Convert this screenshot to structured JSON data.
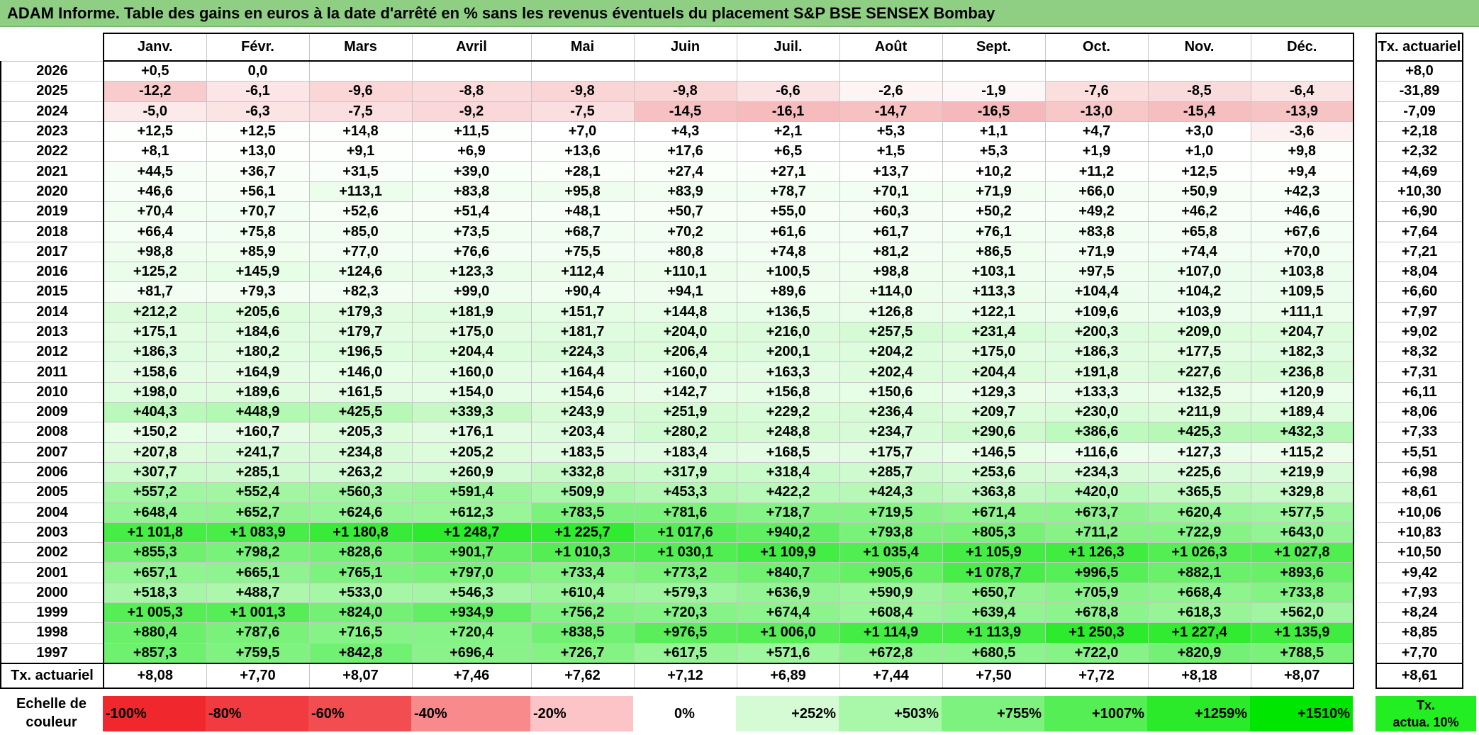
{
  "title": "ADAM Informe. Table des gains en euros à la date d'arrêté en % sans les revenus éventuels du placement S&P BSE SENSEX Bombay",
  "months": [
    "Janv.",
    "Févr.",
    "Mars",
    "Avril",
    "Mai",
    "Juin",
    "Juil.",
    "Août",
    "Sept.",
    "Oct.",
    "Nov.",
    "Déc."
  ],
  "actuarial_header": "Tx. actuariel",
  "rows": [
    {
      "year": "2026",
      "values": [
        "+0,5",
        "0,0",
        "",
        "",
        "",
        "",
        "",
        "",
        "",
        "",
        "",
        ""
      ],
      "rate": "+8,0"
    },
    {
      "year": "2025",
      "values": [
        "-12,2",
        "-6,1",
        "-9,6",
        "-8,8",
        "-9,8",
        "-9,8",
        "-6,6",
        "-2,6",
        "-1,9",
        "-7,6",
        "-8,5",
        "-6,4"
      ],
      "rate": "-31,89"
    },
    {
      "year": "2024",
      "values": [
        "-5,0",
        "-6,3",
        "-7,5",
        "-9,2",
        "-7,5",
        "-14,5",
        "-16,1",
        "-14,7",
        "-16,5",
        "-13,0",
        "-15,4",
        "-13,9"
      ],
      "rate": "-7,09"
    },
    {
      "year": "2023",
      "values": [
        "+12,5",
        "+12,5",
        "+14,8",
        "+11,5",
        "+7,0",
        "+4,3",
        "+2,1",
        "+5,3",
        "+1,1",
        "+4,7",
        "+3,0",
        "-3,6"
      ],
      "rate": "+2,18"
    },
    {
      "year": "2022",
      "values": [
        "+8,1",
        "+13,0",
        "+9,1",
        "+6,9",
        "+13,6",
        "+17,6",
        "+6,5",
        "+1,5",
        "+5,3",
        "+1,9",
        "+1,0",
        "+9,8"
      ],
      "rate": "+2,32"
    },
    {
      "year": "2021",
      "values": [
        "+44,5",
        "+36,7",
        "+31,5",
        "+39,0",
        "+28,1",
        "+27,4",
        "+27,1",
        "+13,7",
        "+10,2",
        "+11,2",
        "+12,5",
        "+9,4"
      ],
      "rate": "+4,69"
    },
    {
      "year": "2020",
      "values": [
        "+46,6",
        "+56,1",
        "+113,1",
        "+83,8",
        "+95,8",
        "+83,9",
        "+78,7",
        "+70,1",
        "+71,9",
        "+66,0",
        "+50,9",
        "+42,3"
      ],
      "rate": "+10,30"
    },
    {
      "year": "2019",
      "values": [
        "+70,4",
        "+70,7",
        "+52,6",
        "+51,4",
        "+48,1",
        "+50,7",
        "+55,0",
        "+60,3",
        "+50,2",
        "+49,2",
        "+46,2",
        "+46,6"
      ],
      "rate": "+6,90"
    },
    {
      "year": "2018",
      "values": [
        "+66,4",
        "+75,8",
        "+85,0",
        "+73,5",
        "+68,7",
        "+70,2",
        "+61,6",
        "+61,7",
        "+76,1",
        "+83,8",
        "+65,8",
        "+67,6"
      ],
      "rate": "+7,64"
    },
    {
      "year": "2017",
      "values": [
        "+98,8",
        "+85,9",
        "+77,0",
        "+76,6",
        "+75,5",
        "+80,8",
        "+74,8",
        "+81,2",
        "+86,5",
        "+71,9",
        "+74,4",
        "+70,0"
      ],
      "rate": "+7,21"
    },
    {
      "year": "2016",
      "values": [
        "+125,2",
        "+145,9",
        "+124,6",
        "+123,3",
        "+112,4",
        "+110,1",
        "+100,5",
        "+98,8",
        "+103,1",
        "+97,5",
        "+107,0",
        "+103,8"
      ],
      "rate": "+8,04"
    },
    {
      "year": "2015",
      "values": [
        "+81,7",
        "+79,3",
        "+82,3",
        "+99,0",
        "+90,4",
        "+94,1",
        "+89,6",
        "+114,0",
        "+113,3",
        "+104,4",
        "+104,2",
        "+109,5"
      ],
      "rate": "+6,60"
    },
    {
      "year": "2014",
      "values": [
        "+212,2",
        "+205,6",
        "+179,3",
        "+181,9",
        "+151,7",
        "+144,8",
        "+136,5",
        "+126,8",
        "+122,1",
        "+109,6",
        "+103,9",
        "+111,1"
      ],
      "rate": "+7,97"
    },
    {
      "year": "2013",
      "values": [
        "+175,1",
        "+184,6",
        "+179,7",
        "+175,0",
        "+181,7",
        "+204,0",
        "+216,0",
        "+257,5",
        "+231,4",
        "+200,3",
        "+209,0",
        "+204,7"
      ],
      "rate": "+9,02"
    },
    {
      "year": "2012",
      "values": [
        "+186,3",
        "+180,2",
        "+196,5",
        "+204,4",
        "+224,3",
        "+206,4",
        "+200,1",
        "+204,2",
        "+175,0",
        "+186,3",
        "+177,5",
        "+182,3"
      ],
      "rate": "+8,32"
    },
    {
      "year": "2011",
      "values": [
        "+158,6",
        "+164,9",
        "+146,0",
        "+160,0",
        "+164,4",
        "+160,0",
        "+163,3",
        "+202,4",
        "+204,4",
        "+191,8",
        "+227,6",
        "+236,8"
      ],
      "rate": "+7,31"
    },
    {
      "year": "2010",
      "values": [
        "+198,0",
        "+189,6",
        "+161,5",
        "+154,0",
        "+154,6",
        "+142,7",
        "+156,8",
        "+150,6",
        "+129,3",
        "+133,3",
        "+132,5",
        "+120,9"
      ],
      "rate": "+6,11"
    },
    {
      "year": "2009",
      "values": [
        "+404,3",
        "+448,9",
        "+425,5",
        "+339,3",
        "+243,9",
        "+251,9",
        "+229,2",
        "+236,4",
        "+209,7",
        "+230,0",
        "+211,9",
        "+189,4"
      ],
      "rate": "+8,06"
    },
    {
      "year": "2008",
      "values": [
        "+150,2",
        "+160,7",
        "+205,3",
        "+176,1",
        "+203,4",
        "+280,2",
        "+248,8",
        "+234,7",
        "+290,6",
        "+386,6",
        "+425,3",
        "+432,3"
      ],
      "rate": "+7,33"
    },
    {
      "year": "2007",
      "values": [
        "+207,8",
        "+241,7",
        "+234,8",
        "+205,2",
        "+183,5",
        "+183,4",
        "+168,5",
        "+175,7",
        "+146,5",
        "+116,6",
        "+127,3",
        "+115,2"
      ],
      "rate": "+5,51"
    },
    {
      "year": "2006",
      "values": [
        "+307,7",
        "+285,1",
        "+263,2",
        "+260,9",
        "+332,8",
        "+317,9",
        "+318,4",
        "+285,7",
        "+253,6",
        "+234,3",
        "+225,6",
        "+219,9"
      ],
      "rate": "+6,98"
    },
    {
      "year": "2005",
      "values": [
        "+557,2",
        "+552,4",
        "+560,3",
        "+591,4",
        "+509,9",
        "+453,3",
        "+422,2",
        "+424,3",
        "+363,8",
        "+420,0",
        "+365,5",
        "+329,8"
      ],
      "rate": "+8,61"
    },
    {
      "year": "2004",
      "values": [
        "+648,4",
        "+652,7",
        "+624,6",
        "+612,3",
        "+783,5",
        "+781,6",
        "+718,7",
        "+719,5",
        "+671,4",
        "+673,7",
        "+620,4",
        "+577,5"
      ],
      "rate": "+10,06"
    },
    {
      "year": "2003",
      "values": [
        "+1 101,8",
        "+1 083,9",
        "+1 180,8",
        "+1 248,7",
        "+1 225,7",
        "+1 017,6",
        "+940,2",
        "+793,8",
        "+805,3",
        "+711,2",
        "+722,9",
        "+643,0"
      ],
      "rate": "+10,83"
    },
    {
      "year": "2002",
      "values": [
        "+855,3",
        "+798,2",
        "+828,6",
        "+901,7",
        "+1 010,3",
        "+1 030,1",
        "+1 109,9",
        "+1 035,4",
        "+1 105,9",
        "+1 126,3",
        "+1 026,3",
        "+1 027,8"
      ],
      "rate": "+10,50"
    },
    {
      "year": "2001",
      "values": [
        "+657,1",
        "+665,1",
        "+765,1",
        "+797,0",
        "+733,4",
        "+773,2",
        "+840,7",
        "+905,6",
        "+1 078,7",
        "+996,5",
        "+882,1",
        "+893,6"
      ],
      "rate": "+9,42"
    },
    {
      "year": "2000",
      "values": [
        "+518,3",
        "+488,7",
        "+533,0",
        "+546,3",
        "+610,4",
        "+579,3",
        "+636,9",
        "+590,9",
        "+650,7",
        "+705,9",
        "+668,4",
        "+733,8"
      ],
      "rate": "+7,93"
    },
    {
      "year": "1999",
      "values": [
        "+1 005,3",
        "+1 001,3",
        "+824,0",
        "+934,9",
        "+756,2",
        "+720,3",
        "+674,4",
        "+608,4",
        "+639,4",
        "+678,8",
        "+618,3",
        "+562,0"
      ],
      "rate": "+8,24"
    },
    {
      "year": "1998",
      "values": [
        "+880,4",
        "+787,6",
        "+716,5",
        "+720,4",
        "+838,5",
        "+976,5",
        "+1 006,0",
        "+1 114,9",
        "+1 113,9",
        "+1 250,3",
        "+1 227,4",
        "+1 135,9"
      ],
      "rate": "+8,85"
    },
    {
      "year": "1997",
      "values": [
        "+857,3",
        "+759,5",
        "+842,8",
        "+696,4",
        "+726,7",
        "+617,5",
        "+571,6",
        "+672,8",
        "+680,5",
        "+722,0",
        "+820,9",
        "+788,5"
      ],
      "rate": "+7,70"
    }
  ],
  "totals": {
    "label": "Tx. actuariel",
    "values": [
      "+8,08",
      "+7,70",
      "+8,07",
      "+7,46",
      "+7,62",
      "+7,12",
      "+6,89",
      "+7,44",
      "+7,50",
      "+7,72",
      "+8,18",
      "+8,07"
    ],
    "rate": "+8,61"
  },
  "legend": {
    "label_line1": "Echelle de",
    "label_line2": "couleur",
    "cells": [
      {
        "text": "-100%",
        "color": "#f0282e"
      },
      {
        "text": "-80%",
        "color": "#f13b40"
      },
      {
        "text": "-60%",
        "color": "#f24d51"
      },
      {
        "text": "-40%",
        "color": "#f88a8c"
      },
      {
        "text": "-20%",
        "color": "#fcc4c6"
      },
      {
        "text": "0%",
        "color": "#ffffff"
      },
      {
        "text": "+252%",
        "color": "#d4fbd4"
      },
      {
        "text": "+503%",
        "color": "#a9f7a9"
      },
      {
        "text": "+755%",
        "color": "#7ef27e"
      },
      {
        "text": "+1007%",
        "color": "#55ee55"
      },
      {
        "text": "+1259%",
        "color": "#2aea2a"
      },
      {
        "text": "+1510%",
        "color": "#00e600"
      }
    ],
    "act_line1": "Tx.",
    "act_line2": "actua. 10%",
    "act_color": "#22ee22"
  },
  "colors": {
    "title_bg": "#8fcf84",
    "neg_strong": "#f0282e",
    "pos_strong": "#00e600"
  }
}
